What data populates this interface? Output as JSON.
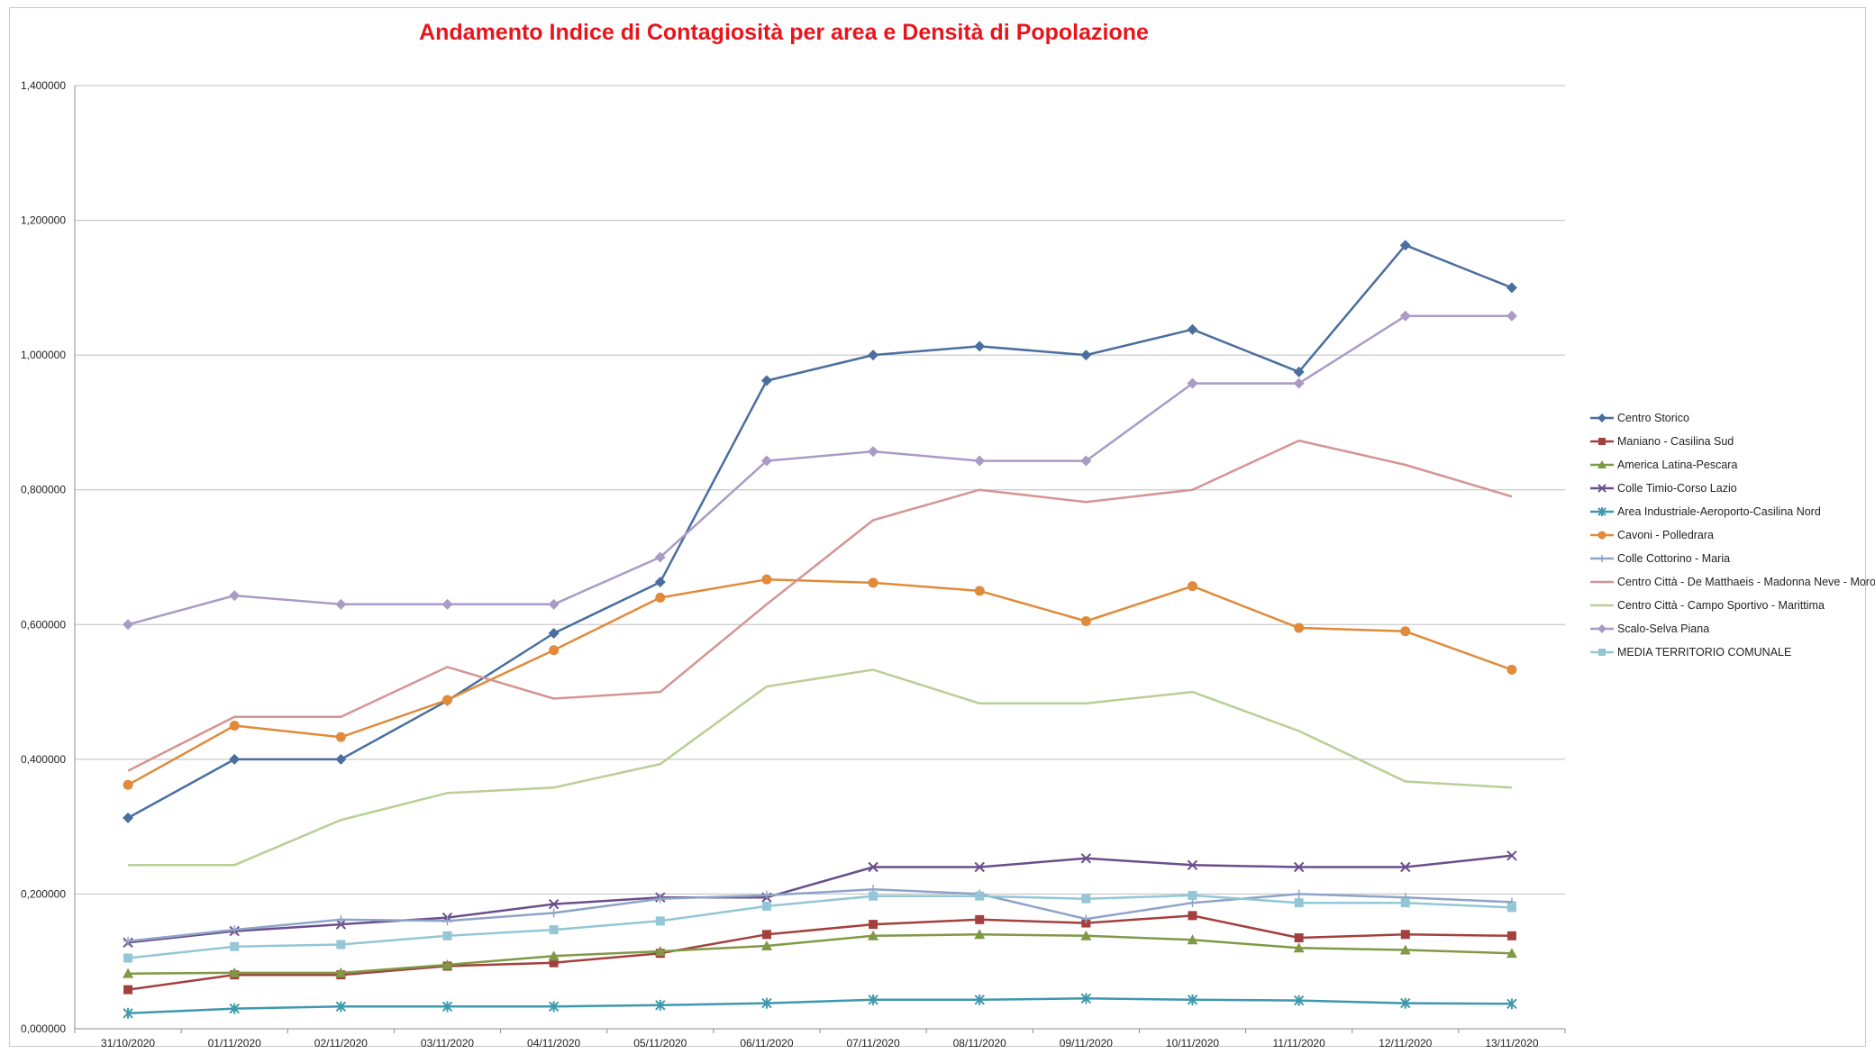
{
  "chart_data": {
    "type": "line",
    "title": "Andamento Indice di Contagiosità per area e Densità di Popolazione",
    "xlabel": "",
    "ylabel": "",
    "ylim": [
      0,
      1.4
    ],
    "yticks": [
      "0,000000",
      "0,200000",
      "0,400000",
      "0,600000",
      "0,800000",
      "1,000000",
      "1,200000",
      "1,400000"
    ],
    "grid": true,
    "legend_position": "right",
    "categories": [
      "31/10/2020",
      "01/11/2020",
      "02/11/2020",
      "03/11/2020",
      "04/11/2020",
      "05/11/2020",
      "06/11/2020",
      "07/11/2020",
      "08/11/2020",
      "09/11/2020",
      "10/11/2020",
      "11/11/2020",
      "12/11/2020",
      "13/11/2020"
    ],
    "series": [
      {
        "name": "Centro Storico",
        "color": "#4a6e9e",
        "marker": "diamond",
        "values": [
          0.313,
          0.4,
          0.4,
          0.487,
          0.587,
          0.663,
          0.962,
          1.0,
          1.013,
          1.0,
          1.038,
          0.975,
          1.163,
          1.1
        ]
      },
      {
        "name": "Maniano - Casilina Sud",
        "color": "#a3403d",
        "marker": "square",
        "values": [
          0.058,
          0.08,
          0.08,
          0.093,
          0.098,
          0.112,
          0.14,
          0.155,
          0.162,
          0.157,
          0.168,
          0.135,
          0.14,
          0.138
        ]
      },
      {
        "name": "America Latina-Pescara",
        "color": "#7f9a45",
        "marker": "triangle",
        "values": [
          0.082,
          0.083,
          0.083,
          0.095,
          0.108,
          0.115,
          0.123,
          0.138,
          0.14,
          0.138,
          0.132,
          0.12,
          0.117,
          0.112
        ]
      },
      {
        "name": "Colle Timio-Corso Lazio",
        "color": "#6b4e8c",
        "marker": "x",
        "values": [
          0.128,
          0.145,
          0.155,
          0.165,
          0.185,
          0.195,
          0.195,
          0.24,
          0.24,
          0.253,
          0.243,
          0.24,
          0.24,
          0.257
        ]
      },
      {
        "name": "Area Industriale-Aeroporto-Casilina Nord",
        "color": "#3e98ae",
        "marker": "star",
        "values": [
          0.023,
          0.03,
          0.033,
          0.033,
          0.033,
          0.035,
          0.038,
          0.043,
          0.043,
          0.045,
          0.043,
          0.042,
          0.038,
          0.037
        ]
      },
      {
        "name": "Cavoni - Polledrara",
        "color": "#e08a3a",
        "marker": "circle",
        "values": [
          0.362,
          0.45,
          0.433,
          0.488,
          0.562,
          0.64,
          0.667,
          0.662,
          0.65,
          0.605,
          0.657,
          0.595,
          0.59,
          0.533
        ]
      },
      {
        "name": "Colle Cottorino - Maria",
        "color": "#8ea4c8",
        "marker": "plus",
        "values": [
          0.13,
          0.147,
          0.162,
          0.16,
          0.172,
          0.193,
          0.198,
          0.207,
          0.2,
          0.163,
          0.187,
          0.2,
          0.195,
          0.188
        ]
      },
      {
        "name": "Centro Città - De Matthaeis - Madonna Neve - Moro",
        "color": "#d49593",
        "marker": "none",
        "values": [
          0.383,
          0.463,
          0.463,
          0.537,
          0.49,
          0.5,
          0.63,
          0.755,
          0.8,
          0.782,
          0.8,
          0.873,
          0.837,
          0.79
        ]
      },
      {
        "name": "Centro Città - Campo Sportivo - Marittima",
        "color": "#b9cf95",
        "marker": "none",
        "values": [
          0.243,
          0.243,
          0.31,
          0.35,
          0.358,
          0.393,
          0.508,
          0.533,
          0.483,
          0.483,
          0.5,
          0.442,
          0.367,
          0.358
        ]
      },
      {
        "name": "Scalo-Selva Piana",
        "color": "#a99bc6",
        "marker": "diamond",
        "values": [
          0.6,
          0.643,
          0.63,
          0.63,
          0.63,
          0.7,
          0.843,
          0.857,
          0.843,
          0.843,
          0.958,
          0.958,
          1.058,
          1.058
        ]
      },
      {
        "name": "MEDIA TERRITORIO COMUNALE",
        "color": "#93c6d6",
        "marker": "square",
        "values": [
          0.105,
          0.122,
          0.125,
          0.138,
          0.147,
          0.16,
          0.182,
          0.197,
          0.197,
          0.193,
          0.198,
          0.187,
          0.187,
          0.18
        ]
      }
    ]
  }
}
